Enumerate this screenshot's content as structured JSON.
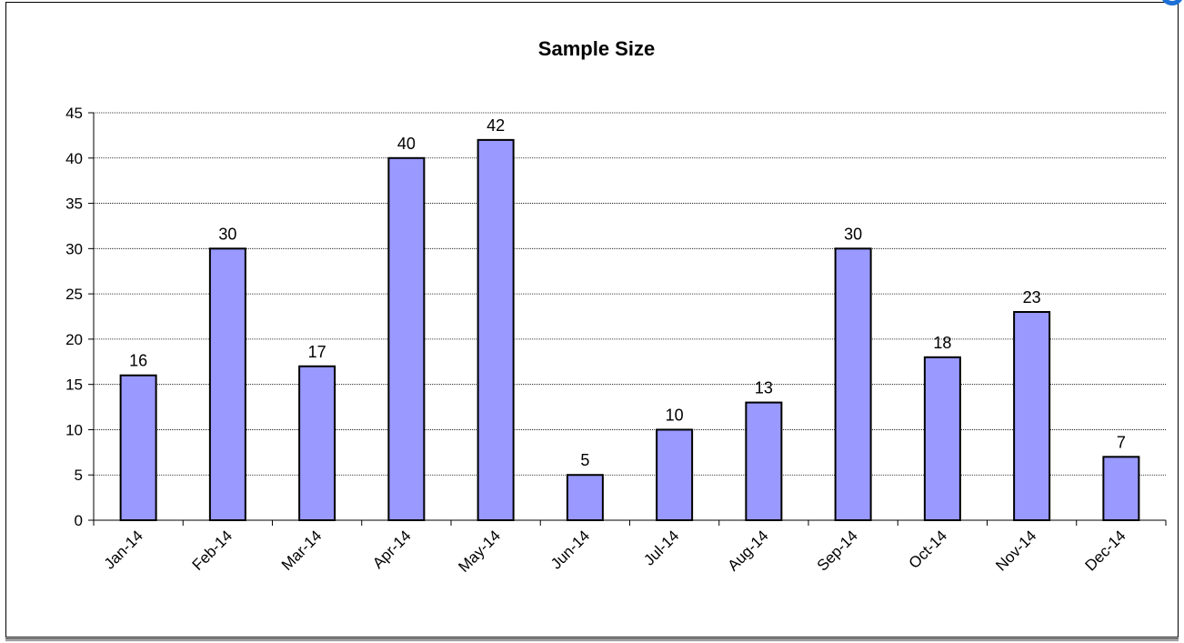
{
  "chart_data": {
    "type": "bar",
    "title": "Sample Size",
    "xlabel": "",
    "ylabel": "",
    "categories": [
      "Jan-14",
      "Feb-14",
      "Mar-14",
      "Apr-14",
      "May-14",
      "Jun-14",
      "Jul-14",
      "Aug-14",
      "Sep-14",
      "Oct-14",
      "Nov-14",
      "Dec-14"
    ],
    "values": [
      16,
      30,
      17,
      40,
      42,
      5,
      10,
      13,
      30,
      18,
      23,
      7
    ],
    "ylim": [
      0,
      45
    ],
    "yticks": [
      0,
      5,
      10,
      15,
      20,
      25,
      30,
      35,
      40,
      45
    ],
    "grid": true,
    "legend": "none",
    "bar_color": "#9999ff",
    "bar_edge_color": "#000000"
  }
}
